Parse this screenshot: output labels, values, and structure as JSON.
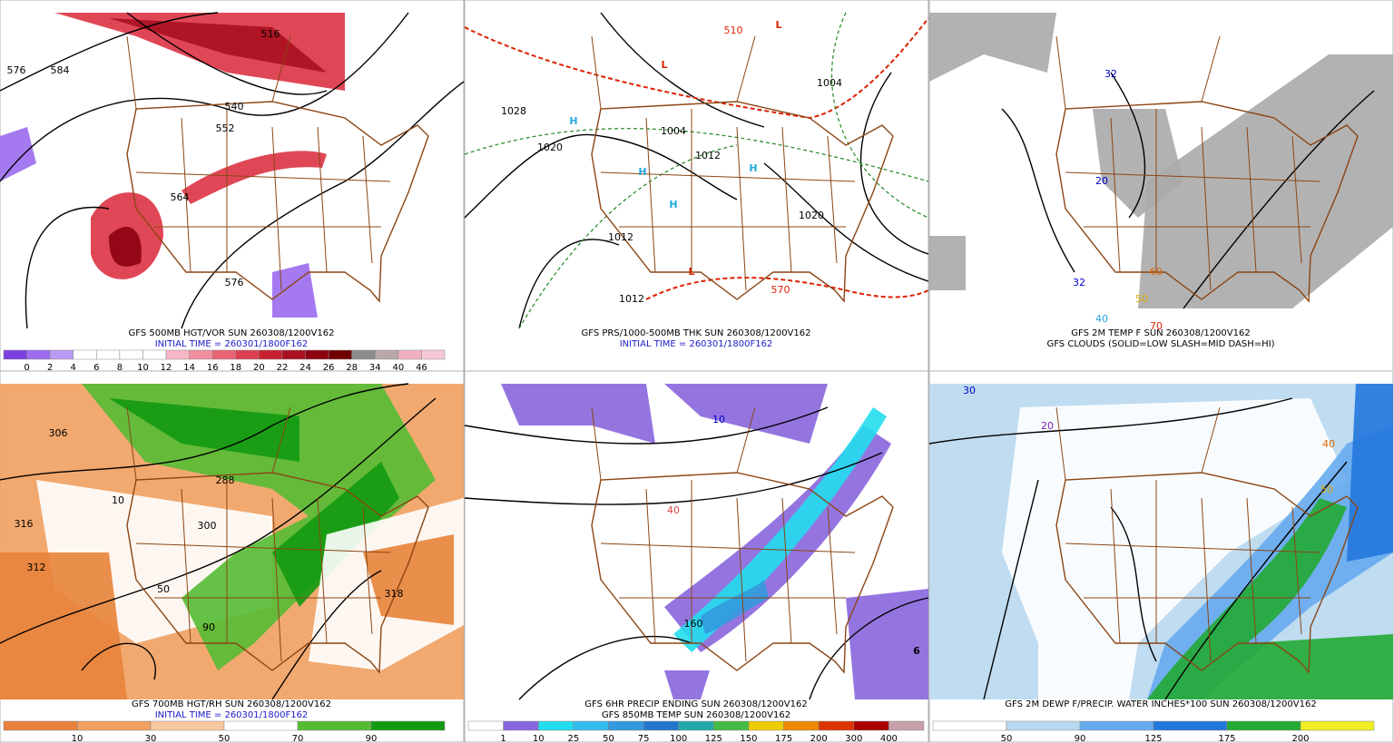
{
  "panels": [
    {
      "title": "GFS 500MB HGT/VOR SUN 260308/1200V162",
      "subtitle": "INITIAL TIME = 260301/1800F162",
      "colorbar": {
        "labels": [
          0,
          2,
          4,
          6,
          8,
          10,
          12,
          14,
          16,
          18,
          20,
          22,
          24,
          26,
          28,
          34,
          40,
          46
        ],
        "colors": [
          "#7b3fe0",
          "#9b6cf0",
          "#b99cf5",
          "#ffffff",
          "#ffffff",
          "#ffffff",
          "#ffffff",
          "#f6b7c4",
          "#f08fa0",
          "#e86474",
          "#dd3f50",
          "#c8202e",
          "#aa1020",
          "#8c0010",
          "#700000",
          "#8c8c8c",
          "#b8a8a8",
          "#f0b0c0",
          "#f8c8d8"
        ]
      },
      "map_labels": [
        {
          "text": "576",
          "color": "#000000"
        },
        {
          "text": "584",
          "color": "#000000"
        },
        {
          "text": "516",
          "color": "#000000"
        },
        {
          "text": "540",
          "color": "#000000"
        },
        {
          "text": "552",
          "color": "#000000"
        },
        {
          "text": "564",
          "color": "#000000"
        },
        {
          "text": "576",
          "color": "#000000"
        }
      ]
    },
    {
      "title": "GFS PRS/1000-500MB THK SUN 260308/1200V162",
      "subtitle": "INITIAL TIME = 260301/1800F162",
      "map_labels": [
        {
          "text": "1028",
          "color": "#000000"
        },
        {
          "text": "1020",
          "color": "#000000"
        },
        {
          "text": "1004",
          "color": "#000000"
        },
        {
          "text": "1012",
          "color": "#000000"
        },
        {
          "text": "1012",
          "color": "#000000"
        },
        {
          "text": "1020",
          "color": "#000000"
        },
        {
          "text": "1012",
          "color": "#000000"
        },
        {
          "text": "570",
          "color": "#dd2200"
        },
        {
          "text": "510",
          "color": "#dd2200"
        },
        {
          "text": "1004",
          "color": "#000000"
        },
        {
          "text": "H",
          "color": "#22aadd"
        },
        {
          "text": "H",
          "color": "#22aadd"
        },
        {
          "text": "H",
          "color": "#22aadd"
        },
        {
          "text": "H",
          "color": "#22aadd"
        },
        {
          "text": "L",
          "color": "#dd2200"
        },
        {
          "text": "L",
          "color": "#dd2200"
        },
        {
          "text": "L",
          "color": "#dd2200"
        }
      ]
    },
    {
      "title": "GFS 2M TEMP F SUN 260308/1200V162",
      "subtitle": "GFS CLOUDS (SOLID=LOW SLASH=MID DASH=HI)",
      "map_labels": [
        {
          "text": "32",
          "color": "#0000cc"
        },
        {
          "text": "20",
          "color": "#0000cc"
        },
        {
          "text": "32",
          "color": "#0000cc"
        },
        {
          "text": "40",
          "color": "#22aadd"
        },
        {
          "text": "50",
          "color": "#ddaa00"
        },
        {
          "text": "60",
          "color": "#dd6600"
        },
        {
          "text": "70",
          "color": "#dd2200"
        }
      ]
    },
    {
      "title": "GFS 700MB HGT/RH SUN 260308/1200V162",
      "subtitle": "INITIAL TIME = 260301/1800F162",
      "colorbar": {
        "labels": [
          10,
          30,
          50,
          70,
          90
        ],
        "colors": [
          "#e8823a",
          "#f0a060",
          "#f8c8a0",
          "#ffffff",
          "#55bb33",
          "#129a12"
        ]
      },
      "map_labels": [
        {
          "text": "306",
          "color": "#000000"
        },
        {
          "text": "316",
          "color": "#000000"
        },
        {
          "text": "312",
          "color": "#000000"
        },
        {
          "text": "300",
          "color": "#000000"
        },
        {
          "text": "288",
          "color": "#000000"
        },
        {
          "text": "10",
          "color": "#000000"
        },
        {
          "text": "50",
          "color": "#000000"
        },
        {
          "text": "90",
          "color": "#000000"
        },
        {
          "text": "318",
          "color": "#000000"
        }
      ]
    },
    {
      "title": "GFS 6HR PRECIP ENDING SUN 260308/1200V162",
      "subtitle": "GFS 850MB TEMP SUN 260308/1200V162",
      "colorbar": {
        "labels": [
          1,
          10,
          25,
          50,
          75,
          100,
          125,
          150,
          175,
          200,
          300,
          400
        ],
        "colors": [
          "#ffffff",
          "#8866dd",
          "#22ddee",
          "#33bbee",
          "#3399dd",
          "#2277cc",
          "#22aaaa",
          "#44bb44",
          "#eecc00",
          "#ee8800",
          "#dd3300",
          "#aa0000",
          "#c8a0a8"
        ]
      },
      "map_labels": [
        {
          "text": "10",
          "color": "#0000cc"
        },
        {
          "text": "160",
          "color": "#000000"
        },
        {
          "text": "40",
          "color": "#dd4444"
        },
        {
          "text": "6",
          "color": "#000000"
        }
      ]
    },
    {
      "title": "GFS 2M DEWP F/PRECIP. WATER INCHES*100 SUN 260308/1200V162",
      "colorbar": {
        "labels": [
          50,
          90,
          125,
          175,
          200
        ],
        "colors": [
          "#ffffff",
          "#b8d8f0",
          "#66aaee",
          "#2277dd",
          "#22aa33",
          "#eeee22"
        ]
      },
      "map_labels": [
        {
          "text": "30",
          "color": "#0000cc"
        },
        {
          "text": "20",
          "color": "#7722aa"
        },
        {
          "text": "40",
          "color": "#dd6600"
        },
        {
          "text": "50",
          "color": "#ddaa00"
        }
      ]
    }
  ]
}
